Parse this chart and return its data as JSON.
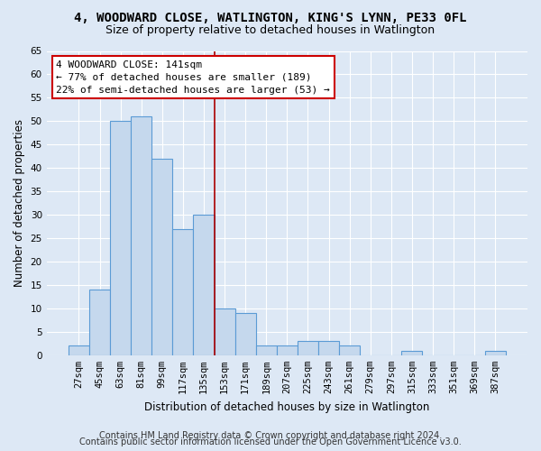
{
  "title_line1": "4, WOODWARD CLOSE, WATLINGTON, KING'S LYNN, PE33 0FL",
  "title_line2": "Size of property relative to detached houses in Watlington",
  "xlabel": "Distribution of detached houses by size in Watlington",
  "ylabel": "Number of detached properties",
  "footer_line1": "Contains HM Land Registry data © Crown copyright and database right 2024.",
  "footer_line2": "Contains public sector information licensed under the Open Government Licence v3.0.",
  "annotation_line1": "4 WOODWARD CLOSE: 141sqm",
  "annotation_line2": "← 77% of detached houses are smaller (189)",
  "annotation_line3": "22% of semi-detached houses are larger (53) →",
  "categories": [
    "27sqm",
    "45sqm",
    "63sqm",
    "81sqm",
    "99sqm",
    "117sqm",
    "135sqm",
    "153sqm",
    "171sqm",
    "189sqm",
    "207sqm",
    "225sqm",
    "243sqm",
    "261sqm",
    "279sqm",
    "297sqm",
    "315sqm",
    "333sqm",
    "351sqm",
    "369sqm",
    "387sqm"
  ],
  "values": [
    2,
    14,
    50,
    51,
    42,
    27,
    30,
    10,
    9,
    2,
    2,
    3,
    3,
    2,
    0,
    0,
    1,
    0,
    0,
    0,
    1
  ],
  "bar_color": "#c5d8ed",
  "bar_edge_color": "#5b9bd5",
  "vline_x": 7,
  "vline_color": "#aa0000",
  "ylim": [
    0,
    65
  ],
  "yticks": [
    0,
    5,
    10,
    15,
    20,
    25,
    30,
    35,
    40,
    45,
    50,
    55,
    60,
    65
  ],
  "bg_color": "#dde8f5",
  "grid_color": "#ffffff",
  "fig_bg_color": "#dde8f5",
  "annotation_box_color": "#ffffff",
  "annotation_box_edge": "#cc0000",
  "title_fontsize": 10,
  "subtitle_fontsize": 9,
  "axis_label_fontsize": 8.5,
  "tick_fontsize": 7.5,
  "annotation_fontsize": 8,
  "footer_fontsize": 7
}
